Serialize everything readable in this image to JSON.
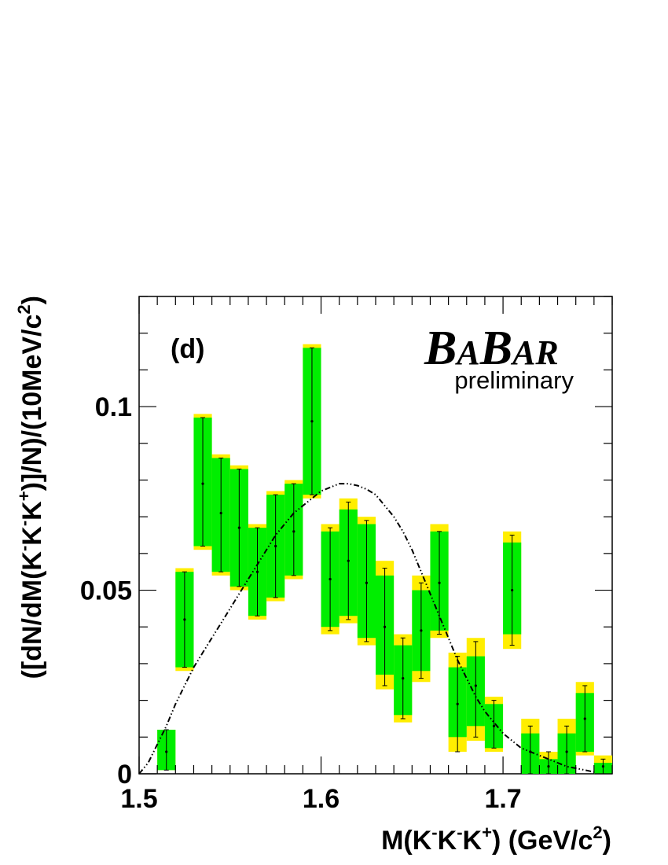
{
  "chart_data": {
    "type": "bar",
    "panel_label": "(d)",
    "watermark": {
      "experiment_parts": [
        "B",
        "A",
        "B",
        "AR"
      ],
      "status": "preliminary"
    },
    "xlabel": {
      "pre": "M(K",
      "s1": "-",
      "mid1": "K",
      "s2": "-",
      "mid2": "K",
      "s3": "+",
      "post": ") (GeV/c",
      "s4": "2",
      "end": ")"
    },
    "ylabel": {
      "pre": "([dN/dM(K",
      "s1": "-",
      "mid1": "K",
      "s2": "-",
      "mid2": "K",
      "s3": "+",
      "post": ")]/N)/(10MeV/c",
      "s4": "2",
      "end": ")"
    },
    "xlim": [
      1.5,
      1.76
    ],
    "ylim": [
      0,
      0.13
    ],
    "x_ticks": [
      1.5,
      1.6,
      1.7
    ],
    "x_tick_labels": [
      "1.5",
      "1.6",
      "1.7"
    ],
    "y_ticks": [
      0,
      0.05,
      0.1
    ],
    "y_tick_labels": [
      "0",
      "0.05",
      "0.1"
    ],
    "bin_width": 0.01,
    "colors": {
      "inner_band": "#00ee00",
      "outer_band": "#ffee00",
      "points": "#000000",
      "curve": "#000000"
    },
    "bins": [
      {
        "x": 1.515,
        "y": 0.006,
        "stat_lo": 0.001,
        "stat_hi": 0.012,
        "band_lo": 0.001,
        "band_hi": 0.012,
        "outer_lo": 0.001,
        "outer_hi": 0.012
      },
      {
        "x": 1.525,
        "y": 0.042,
        "stat_lo": 0.029,
        "stat_hi": 0.055,
        "band_lo": 0.029,
        "band_hi": 0.055,
        "outer_lo": 0.028,
        "outer_hi": 0.056
      },
      {
        "x": 1.535,
        "y": 0.079,
        "stat_lo": 0.062,
        "stat_hi": 0.097,
        "band_lo": 0.062,
        "band_hi": 0.097,
        "outer_lo": 0.061,
        "outer_hi": 0.098
      },
      {
        "x": 1.545,
        "y": 0.071,
        "stat_lo": 0.055,
        "stat_hi": 0.086,
        "band_lo": 0.055,
        "band_hi": 0.086,
        "outer_lo": 0.054,
        "outer_hi": 0.087
      },
      {
        "x": 1.555,
        "y": 0.067,
        "stat_lo": 0.051,
        "stat_hi": 0.083,
        "band_lo": 0.051,
        "band_hi": 0.083,
        "outer_lo": 0.05,
        "outer_hi": 0.084
      },
      {
        "x": 1.565,
        "y": 0.055,
        "stat_lo": 0.043,
        "stat_hi": 0.067,
        "band_lo": 0.043,
        "band_hi": 0.067,
        "outer_lo": 0.042,
        "outer_hi": 0.068
      },
      {
        "x": 1.575,
        "y": 0.062,
        "stat_lo": 0.048,
        "stat_hi": 0.076,
        "band_lo": 0.048,
        "band_hi": 0.076,
        "outer_lo": 0.047,
        "outer_hi": 0.077
      },
      {
        "x": 1.585,
        "y": 0.066,
        "stat_lo": 0.054,
        "stat_hi": 0.079,
        "band_lo": 0.054,
        "band_hi": 0.079,
        "outer_lo": 0.053,
        "outer_hi": 0.08
      },
      {
        "x": 1.595,
        "y": 0.096,
        "stat_lo": 0.076,
        "stat_hi": 0.116,
        "band_lo": 0.076,
        "band_hi": 0.116,
        "outer_lo": 0.075,
        "outer_hi": 0.117
      },
      {
        "x": 1.605,
        "y": 0.053,
        "stat_lo": 0.039,
        "stat_hi": 0.067,
        "band_lo": 0.04,
        "band_hi": 0.066,
        "outer_lo": 0.038,
        "outer_hi": 0.068
      },
      {
        "x": 1.615,
        "y": 0.058,
        "stat_lo": 0.042,
        "stat_hi": 0.074,
        "band_lo": 0.043,
        "band_hi": 0.072,
        "outer_lo": 0.041,
        "outer_hi": 0.075
      },
      {
        "x": 1.625,
        "y": 0.052,
        "stat_lo": 0.036,
        "stat_hi": 0.069,
        "band_lo": 0.037,
        "band_hi": 0.068,
        "outer_lo": 0.035,
        "outer_hi": 0.07
      },
      {
        "x": 1.635,
        "y": 0.04,
        "stat_lo": 0.024,
        "stat_hi": 0.056,
        "band_lo": 0.027,
        "band_hi": 0.054,
        "outer_lo": 0.023,
        "outer_hi": 0.058
      },
      {
        "x": 1.645,
        "y": 0.026,
        "stat_lo": 0.015,
        "stat_hi": 0.037,
        "band_lo": 0.016,
        "band_hi": 0.035,
        "outer_lo": 0.014,
        "outer_hi": 0.038
      },
      {
        "x": 1.655,
        "y": 0.039,
        "stat_lo": 0.026,
        "stat_hi": 0.052,
        "band_lo": 0.028,
        "band_hi": 0.05,
        "outer_lo": 0.025,
        "outer_hi": 0.054
      },
      {
        "x": 1.665,
        "y": 0.052,
        "stat_lo": 0.038,
        "stat_hi": 0.066,
        "band_lo": 0.039,
        "band_hi": 0.066,
        "outer_lo": 0.037,
        "outer_hi": 0.068
      },
      {
        "x": 1.675,
        "y": 0.019,
        "stat_lo": 0.006,
        "stat_hi": 0.032,
        "band_lo": 0.01,
        "band_hi": 0.029,
        "outer_lo": 0.006,
        "outer_hi": 0.033
      },
      {
        "x": 1.685,
        "y": 0.024,
        "stat_lo": 0.01,
        "stat_hi": 0.036,
        "band_lo": 0.013,
        "band_hi": 0.032,
        "outer_lo": 0.009,
        "outer_hi": 0.037
      },
      {
        "x": 1.695,
        "y": 0.013,
        "stat_lo": 0.007,
        "stat_hi": 0.02,
        "band_lo": 0.007,
        "band_hi": 0.019,
        "outer_lo": 0.006,
        "outer_hi": 0.021
      },
      {
        "x": 1.705,
        "y": 0.05,
        "stat_lo": 0.035,
        "stat_hi": 0.065,
        "band_lo": 0.038,
        "band_hi": 0.063,
        "outer_lo": 0.034,
        "outer_hi": 0.066
      },
      {
        "x": 1.715,
        "y": 0.006,
        "stat_lo": 0.0,
        "stat_hi": 0.013,
        "band_lo": 0.0,
        "band_hi": 0.011,
        "outer_lo": 0.0,
        "outer_hi": 0.015
      },
      {
        "x": 1.725,
        "y": 0.002,
        "stat_lo": 0.0,
        "stat_hi": 0.006,
        "band_lo": 0.0,
        "band_hi": 0.004,
        "outer_lo": 0.0,
        "outer_hi": 0.006
      },
      {
        "x": 1.735,
        "y": 0.006,
        "stat_lo": 0.0,
        "stat_hi": 0.013,
        "band_lo": 0.0,
        "band_hi": 0.011,
        "outer_lo": 0.0,
        "outer_hi": 0.015
      },
      {
        "x": 1.745,
        "y": 0.015,
        "stat_lo": 0.006,
        "stat_hi": 0.024,
        "band_lo": 0.006,
        "band_hi": 0.022,
        "outer_lo": 0.005,
        "outer_hi": 0.025
      },
      {
        "x": 1.755,
        "y": 0.002,
        "stat_lo": 0.0,
        "stat_hi": 0.004,
        "band_lo": 0.0,
        "band_hi": 0.003,
        "outer_lo": 0.0,
        "outer_hi": 0.005
      }
    ],
    "curve": {
      "style": "dash-dot",
      "x": [
        1.5,
        1.505,
        1.51,
        1.515,
        1.52,
        1.525,
        1.53,
        1.535,
        1.54,
        1.545,
        1.55,
        1.555,
        1.56,
        1.565,
        1.57,
        1.575,
        1.58,
        1.585,
        1.59,
        1.595,
        1.6,
        1.605,
        1.61,
        1.615,
        1.62,
        1.625,
        1.63,
        1.635,
        1.64,
        1.645,
        1.65,
        1.655,
        1.66,
        1.665,
        1.67,
        1.675,
        1.68,
        1.685,
        1.69,
        1.695,
        1.7,
        1.705,
        1.71,
        1.715,
        1.72,
        1.725,
        1.73,
        1.735,
        1.74,
        1.745,
        1.75
      ],
      "y": [
        0.0,
        0.003,
        0.008,
        0.013,
        0.019,
        0.024,
        0.029,
        0.033,
        0.037,
        0.041,
        0.045,
        0.049,
        0.053,
        0.057,
        0.061,
        0.065,
        0.068,
        0.071,
        0.073,
        0.075,
        0.077,
        0.078,
        0.079,
        0.079,
        0.0785,
        0.0775,
        0.076,
        0.073,
        0.07,
        0.066,
        0.061,
        0.055,
        0.049,
        0.043,
        0.037,
        0.031,
        0.026,
        0.021,
        0.017,
        0.014,
        0.011,
        0.009,
        0.007,
        0.006,
        0.005,
        0.004,
        0.003,
        0.002,
        0.0015,
        0.001,
        0.0005
      ]
    }
  }
}
